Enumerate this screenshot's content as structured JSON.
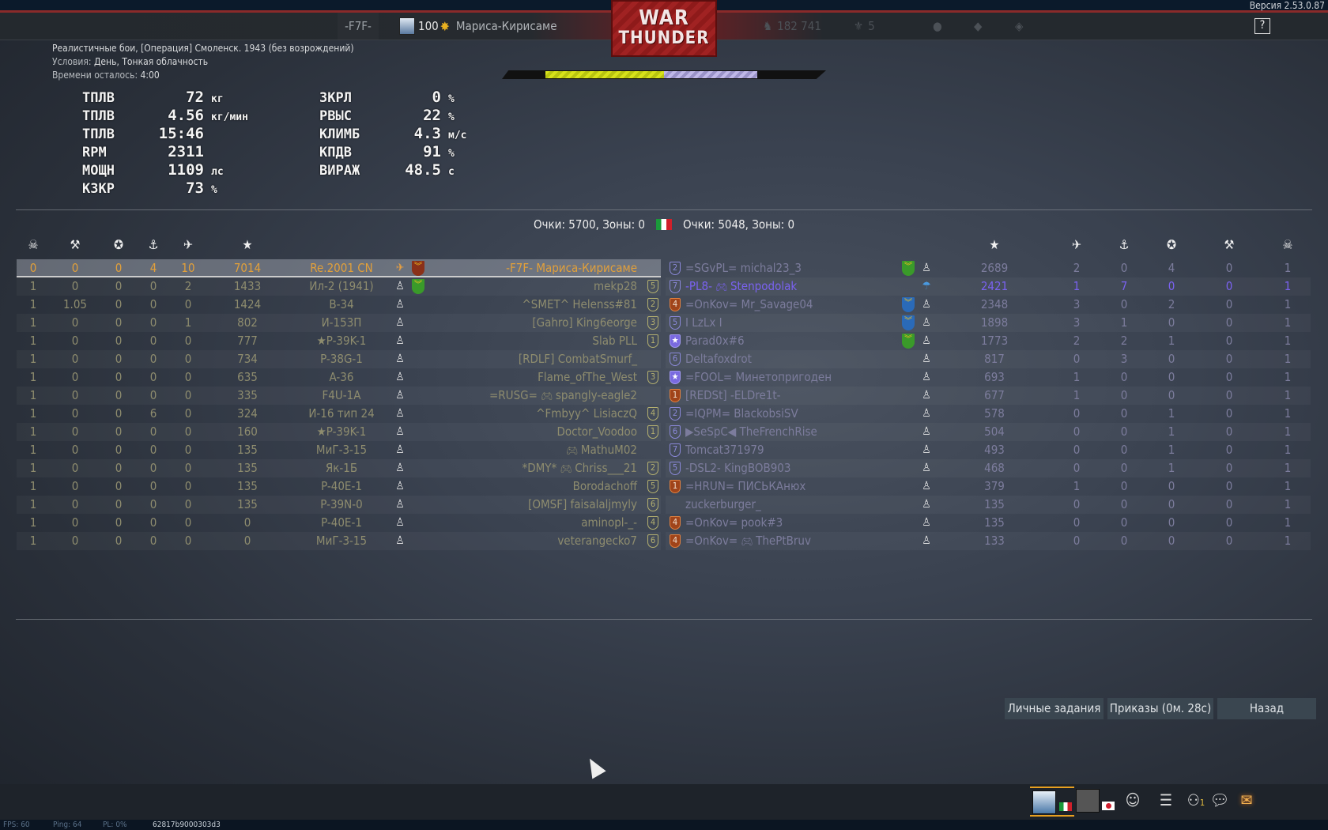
{
  "version": "Версия 2.53.0.87",
  "topbar": {
    "clan_tag": "-F7F-",
    "level": "100",
    "player_name": "Мариса-Кирисаме",
    "lions": "182 741",
    "eagles": "5",
    "help": "?"
  },
  "logo": {
    "line1": "WAR",
    "line2": "THUNDER"
  },
  "mission": {
    "title": "Реалистичные бои, [Операция] Смоленск. 1943 (без возрождений)",
    "conditions_label": "Условия:",
    "conditions": "День, Тонкая облачность",
    "time_label": "Времени осталось:",
    "time": "4:00"
  },
  "capture_progress": {
    "team_a": 0.39,
    "team_b": 0.31,
    "colors": {
      "team_a": "#d7e21a",
      "team_b": "#c0b8e8"
    }
  },
  "score": {
    "left": "Очки: 5700, Зоны: 0",
    "right": "Очки: 5048, Зоны: 0"
  },
  "headers": {
    "deaths": "☠",
    "ground": "⚒",
    "awards": "✪",
    "naval": "⚓",
    "air": "✈",
    "score": "★"
  },
  "left_team": [
    {
      "cells": [
        "0",
        "0",
        "0",
        "4",
        "10",
        "7014"
      ],
      "vehicle": "Re.2001 CN",
      "clan": "-F7F-",
      "nick": "Мариса-Кирисаме",
      "rank": "",
      "icons": [
        "plane",
        "chev-o"
      ],
      "self": true
    },
    {
      "cells": [
        "1",
        "0",
        "0",
        "0",
        "2",
        "1433"
      ],
      "vehicle": "Ил-2 (1941)",
      "clan": "",
      "nick": "mekp28",
      "rank": "5",
      "icons": [
        "pilot",
        "chev-g"
      ]
    },
    {
      "cells": [
        "1",
        "1.05",
        "0",
        "0",
        "0",
        "1424"
      ],
      "vehicle": "B-34",
      "clan": "^SMET^",
      "nick": "Helenss#81",
      "rank": "2",
      "icons": [
        "pilot"
      ]
    },
    {
      "cells": [
        "1",
        "0",
        "0",
        "0",
        "1",
        "802"
      ],
      "vehicle": "И-153П",
      "clan": "[Gahro]",
      "nick": "King6eorge",
      "rank": "3",
      "icons": [
        "pilot"
      ]
    },
    {
      "cells": [
        "1",
        "0",
        "0",
        "0",
        "0",
        "777"
      ],
      "vehicle": "★P-39K-1",
      "clan": "",
      "nick": "Slab PLL",
      "rank": "1",
      "icons": [
        "pilot"
      ]
    },
    {
      "cells": [
        "1",
        "0",
        "0",
        "0",
        "0",
        "734"
      ],
      "vehicle": "P-38G-1",
      "clan": "[RDLF]",
      "nick": "CombatSmurf_",
      "rank": "",
      "icons": [
        "pilot"
      ]
    },
    {
      "cells": [
        "1",
        "0",
        "0",
        "0",
        "0",
        "635"
      ],
      "vehicle": "A-36",
      "clan": "",
      "nick": "Flame_ofThe_West",
      "rank": "3",
      "icons": [
        "pilot"
      ]
    },
    {
      "cells": [
        "1",
        "0",
        "0",
        "0",
        "0",
        "335"
      ],
      "vehicle": "F4U-1A",
      "clan": "=RUSG=",
      "pad": true,
      "nick": "spangly-eagle2",
      "rank": "",
      "icons": [
        "pilot"
      ]
    },
    {
      "cells": [
        "1",
        "0",
        "0",
        "6",
        "0",
        "324"
      ],
      "vehicle": "И-16 тип 24",
      "clan": "^Fmbyy^",
      "nick": "LisiaczQ",
      "rank": "4",
      "icons": [
        "pilot"
      ]
    },
    {
      "cells": [
        "1",
        "0",
        "0",
        "0",
        "0",
        "160"
      ],
      "vehicle": "★P-39K-1",
      "clan": "",
      "nick": "Doctor_Voodoo",
      "rank": "1",
      "icons": [
        "pilot"
      ]
    },
    {
      "cells": [
        "1",
        "0",
        "0",
        "0",
        "0",
        "135"
      ],
      "vehicle": "МиГ-3-15",
      "clan": "",
      "pad": true,
      "nick": "MathuM02",
      "rank": "",
      "icons": [
        "pilot"
      ]
    },
    {
      "cells": [
        "1",
        "0",
        "0",
        "0",
        "0",
        "135"
      ],
      "vehicle": "Як-1Б",
      "clan": "*DMY*",
      "pad": true,
      "nick": "Chriss___21",
      "rank": "2",
      "icons": [
        "pilot"
      ]
    },
    {
      "cells": [
        "1",
        "0",
        "0",
        "0",
        "0",
        "135"
      ],
      "vehicle": "P-40E-1",
      "clan": "",
      "nick": "Borodachoff",
      "rank": "5",
      "icons": [
        "pilot"
      ]
    },
    {
      "cells": [
        "1",
        "0",
        "0",
        "0",
        "0",
        "135"
      ],
      "vehicle": "P-39N-0",
      "clan": "[OMSF]",
      "nick": "faisalaljmyly",
      "rank": "6",
      "icons": [
        "pilot"
      ]
    },
    {
      "cells": [
        "1",
        "0",
        "0",
        "0",
        "0",
        "0"
      ],
      "vehicle": "P-40E-1",
      "clan": "",
      "nick": "aminopl-_-",
      "rank": "4",
      "icons": [
        "pilot"
      ]
    },
    {
      "cells": [
        "1",
        "0",
        "0",
        "0",
        "0",
        "0"
      ],
      "vehicle": "МиГ-3-15",
      "clan": "",
      "nick": "veterangecko7",
      "rank": "6",
      "icons": [
        "pilot"
      ]
    }
  ],
  "right_team": [
    {
      "rank": "2",
      "rank_style": "p",
      "clan": "=SGvPL=",
      "nick": "michal23_3",
      "icons": [
        "chev-g",
        "pilot"
      ],
      "cells": [
        "2689",
        "2",
        "0",
        "4",
        "0",
        "1"
      ]
    },
    {
      "rank": "7",
      "rank_style": "p",
      "clan": "-PL8-",
      "pad": true,
      "nick": "Stenpodolak",
      "icons": [
        "parachute"
      ],
      "cells": [
        "2421",
        "1",
        "7",
        "0",
        "0",
        "1"
      ],
      "highlight": true
    },
    {
      "rank": "4",
      "rank_style": "o",
      "clan": "=OnKov=",
      "nick": "Mr_Savage04",
      "icons": [
        "chev-b",
        "pilot"
      ],
      "cells": [
        "2348",
        "3",
        "0",
        "2",
        "0",
        "1"
      ]
    },
    {
      "rank": "5",
      "rank_style": "p",
      "clan": "",
      "nick": "I LzLx I",
      "icons": [
        "chev-b",
        "pilot"
      ],
      "cells": [
        "1898",
        "3",
        "1",
        "0",
        "0",
        "1"
      ]
    },
    {
      "rank": "★",
      "rank_style": "s",
      "clan": "",
      "nick": "Parad0x#6",
      "icons": [
        "chev-g",
        "pilot"
      ],
      "cells": [
        "1773",
        "2",
        "2",
        "1",
        "0",
        "1"
      ]
    },
    {
      "rank": "6",
      "rank_style": "p",
      "clan": "",
      "nick": "Deltafoxdrot",
      "icons": [
        "pilot"
      ],
      "cells": [
        "817",
        "0",
        "3",
        "0",
        "0",
        "1"
      ]
    },
    {
      "rank": "★",
      "rank_style": "s",
      "clan": "=FOOL=",
      "nick": "Минетопригоден",
      "icons": [
        "pilot"
      ],
      "cells": [
        "693",
        "1",
        "0",
        "0",
        "0",
        "1"
      ]
    },
    {
      "rank": "1",
      "rank_style": "o",
      "clan": "[REDSt]",
      "nick": "-ELDre1t-",
      "icons": [
        "pilot"
      ],
      "cells": [
        "677",
        "1",
        "0",
        "0",
        "0",
        "1"
      ]
    },
    {
      "rank": "2",
      "rank_style": "p",
      "clan": "=IQPM=",
      "nick": "BlackobsiSV",
      "icons": [
        "pilot"
      ],
      "cells": [
        "578",
        "0",
        "0",
        "1",
        "0",
        "1"
      ]
    },
    {
      "rank": "6",
      "rank_style": "p",
      "clan": "▶SeSpC◀",
      "nick": "TheFrenchRise",
      "icons": [
        "pilot"
      ],
      "cells": [
        "504",
        "0",
        "0",
        "1",
        "0",
        "1"
      ]
    },
    {
      "rank": "7",
      "rank_style": "p",
      "clan": "",
      "nick": "Tomcat371979",
      "icons": [
        "pilot"
      ],
      "cells": [
        "493",
        "0",
        "0",
        "1",
        "0",
        "1"
      ]
    },
    {
      "rank": "5",
      "rank_style": "p",
      "clan": "-DSL2-",
      "nick": "KingBOB903",
      "icons": [
        "pilot"
      ],
      "cells": [
        "468",
        "0",
        "0",
        "1",
        "0",
        "1"
      ]
    },
    {
      "rank": "1",
      "rank_style": "o",
      "clan": "=HRUN=",
      "nick": "ПИСЬКАнюх",
      "icons": [
        "pilot"
      ],
      "cells": [
        "379",
        "1",
        "0",
        "0",
        "0",
        "1"
      ]
    },
    {
      "rank": "",
      "rank_style": "",
      "clan": "",
      "nick": "zuckerburger_",
      "icons": [
        "pilot"
      ],
      "cells": [
        "135",
        "0",
        "0",
        "0",
        "0",
        "1"
      ]
    },
    {
      "rank": "4",
      "rank_style": "o",
      "clan": "=OnKov=",
      "nick": "pook#3",
      "icons": [
        "pilot"
      ],
      "cells": [
        "135",
        "0",
        "0",
        "0",
        "0",
        "1"
      ]
    },
    {
      "rank": "4",
      "rank_style": "o",
      "clan": "=OnKov=",
      "pad": true,
      "nick": "ThePtBruv",
      "icons": [
        "pilot"
      ],
      "cells": [
        "133",
        "0",
        "0",
        "0",
        "0",
        "1"
      ]
    }
  ],
  "engine_overlay": [
    {
      "k": "ТПЛВ",
      "v": "72",
      "u": "кг"
    },
    {
      "k": "ТПЛВ",
      "v": "4.56",
      "u": "кг/мин"
    },
    {
      "k": "ТПЛВ",
      "v": "15:46",
      "u": ""
    },
    {
      "k": "RPM",
      "v": "2311",
      "u": ""
    },
    {
      "k": "МОЩН",
      "v": "1109",
      "u": "лс"
    },
    {
      "k": "КЗКР",
      "v": "73",
      "u": "%"
    },
    {
      "k": "ЗКРЛ",
      "v": "0",
      "u": "%"
    },
    {
      "k": "РВЫС",
      "v": "22",
      "u": "%"
    },
    {
      "k": "КЛИМБ",
      "v": "4.3",
      "u": "м/с"
    },
    {
      "k": "КПДВ",
      "v": "91",
      "u": "%"
    },
    {
      "k": "ВИРАЖ",
      "v": "48.5",
      "u": "с"
    }
  ],
  "buttons": {
    "tasks": "Личные задания",
    "orders": "Приказы (0м. 28с)",
    "back": "Назад"
  },
  "bottom": {
    "friends_count": "1"
  },
  "status": {
    "fps": "FPS: 60",
    "ping": "Ping: 64",
    "pl": "PL: 0%",
    "session": "62817b9000303d3"
  }
}
